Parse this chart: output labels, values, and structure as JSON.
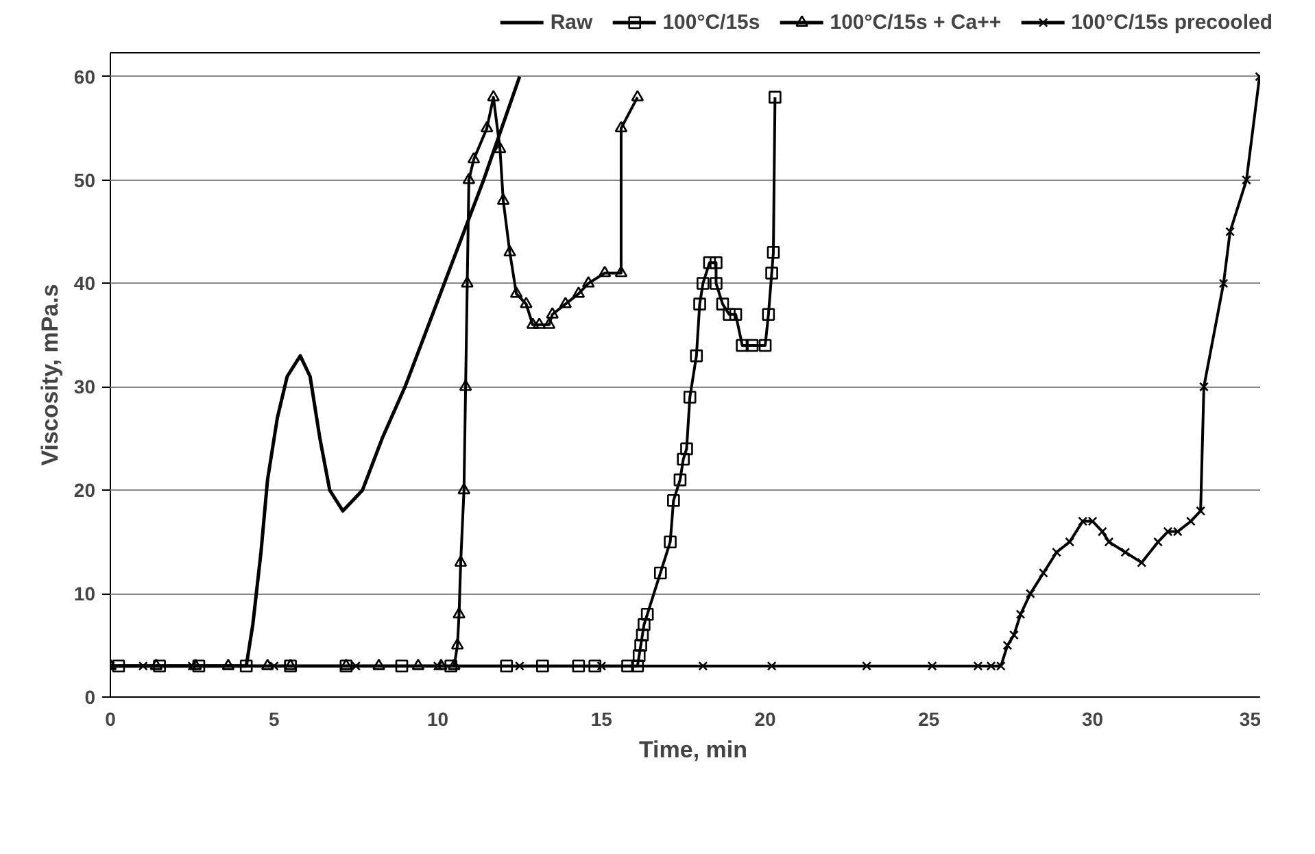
{
  "chart_data": {
    "type": "line",
    "xlabel": "Time, min",
    "ylabel": "Viscosity, mPa.s",
    "xlim": [
      0,
      35.6
    ],
    "ylim": [
      0,
      62.3
    ],
    "xticks": [
      0,
      5,
      10,
      15,
      20,
      25,
      30,
      35
    ],
    "yticks": [
      0,
      10,
      20,
      30,
      40,
      50,
      60
    ],
    "grid": "y",
    "legend": "top",
    "line_style": "solid",
    "series": [
      {
        "name": "Raw",
        "color": "#000000",
        "marker": "none",
        "x": [
          0,
          4.15,
          4.35,
          4.6,
          4.8,
          5.1,
          5.4,
          5.8,
          6.1,
          6.4,
          6.7,
          7.1,
          7.7,
          8.3,
          9.0,
          10.2,
          11.4,
          12.5
        ],
        "values": [
          3,
          3,
          7,
          14,
          21,
          27,
          31,
          33,
          31,
          25,
          20,
          18,
          20,
          25,
          30,
          40,
          50,
          60
        ]
      },
      {
        "name": "100°C/15s",
        "color": "#000000",
        "marker": "square",
        "x": [
          0.25,
          1.5,
          2.7,
          4.15,
          5.5,
          7.2,
          8.9,
          10.4,
          12.1,
          13.2,
          14.3,
          14.8,
          15.8,
          16.1,
          16.15,
          16.2,
          16.25,
          16.3,
          16.4,
          16.8,
          17.1,
          17.2,
          17.4,
          17.5,
          17.6,
          17.7,
          17.9,
          18.0,
          18.1,
          18.3,
          18.5,
          18.5,
          18.7,
          18.9,
          19.1,
          19.3,
          19.6,
          20.0,
          20.1,
          20.2,
          20.25,
          20.3
        ],
        "values": [
          3,
          3,
          3,
          3,
          3,
          3,
          3,
          3,
          3,
          3,
          3,
          3,
          3,
          3,
          4,
          5,
          6,
          7,
          8,
          12,
          15,
          19,
          21,
          23,
          24,
          29,
          33,
          38,
          40,
          42,
          42,
          40,
          38,
          37,
          37,
          34,
          34,
          34,
          37,
          41,
          43,
          58
        ]
      },
      {
        "name": "100°C/15s + Ca++",
        "color": "#000000",
        "marker": "triangle",
        "x": [
          0,
          1.4,
          2.6,
          3.6,
          4.8,
          5.5,
          7.2,
          8.2,
          9.4,
          10.1,
          10.5,
          10.6,
          10.65,
          10.7,
          10.8,
          10.85,
          10.9,
          10.95,
          11.1,
          11.5,
          11.7,
          11.9,
          12.0,
          12.2,
          12.4,
          12.7,
          12.9,
          13.1,
          13.4,
          13.5,
          13.9,
          14.3,
          14.6,
          15.1,
          15.6,
          15.6,
          16.1
        ],
        "values": [
          3,
          3,
          3,
          3,
          3,
          3,
          3,
          3,
          3,
          3,
          3,
          5,
          8,
          13,
          20,
          30,
          40,
          50,
          52,
          55,
          58,
          53,
          48,
          43,
          39,
          38,
          36,
          36,
          36,
          37,
          38,
          39,
          40,
          41,
          41,
          55,
          58
        ]
      },
      {
        "name": "100°C/15s precooled",
        "color": "#000000",
        "marker": "cross",
        "x": [
          0,
          1,
          2.5,
          5,
          7.5,
          10,
          12.5,
          15,
          18.1,
          20.2,
          23.1,
          25.1,
          26.5,
          26.9,
          27.2,
          27.4,
          27.6,
          27.8,
          28.1,
          28.5,
          28.9,
          29.3,
          29.7,
          30.0,
          30.3,
          30.5,
          31.0,
          31.5,
          32.0,
          32.3,
          32.6,
          33.0,
          33.3,
          33.4,
          34.0,
          34.2,
          34.7,
          35.1
        ],
        "values": [
          3,
          3,
          3,
          3,
          3,
          3,
          3,
          3,
          3,
          3,
          3,
          3,
          3,
          3,
          3,
          5,
          6,
          8,
          10,
          12,
          14,
          15,
          17,
          17,
          16,
          15,
          14,
          13,
          15,
          16,
          16,
          17,
          18,
          30,
          40,
          45,
          50,
          60
        ]
      }
    ]
  }
}
